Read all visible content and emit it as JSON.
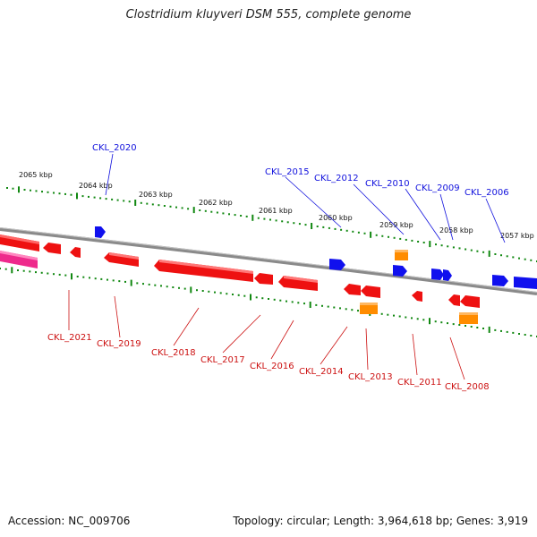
{
  "header": {
    "title": "Clostridium kluyveri DSM 555, complete genome"
  },
  "footer": {
    "accession": "Accession: NC_009706",
    "stats": "Topology: circular; Length: 3,964,618 bp; Genes: 3,919"
  },
  "scale_labels": [
    "2065 kbp",
    "2064 kbp",
    "2063 kbp",
    "2062 kbp",
    "2061 kbp",
    "2060 kbp",
    "2059 kbp",
    "2058 kbp",
    "2057 kbp"
  ],
  "genes_forward": [
    "CKL_2020",
    "CKL_2015",
    "CKL_2012",
    "CKL_2010",
    "CKL_2009",
    "CKL_2006"
  ],
  "genes_reverse": [
    "CKL_2021",
    "CKL_2019",
    "CKL_2018",
    "CKL_2017",
    "CKL_2016",
    "CKL_2014",
    "CKL_2013",
    "CKL_2011",
    "CKL_2008"
  ],
  "colors": {
    "forward": "#1010ee",
    "reverse": "#ee1111",
    "rna": "#ff8c00",
    "pseudo": "#ee2288",
    "backbone": "#888888",
    "ticks": "#118811"
  }
}
